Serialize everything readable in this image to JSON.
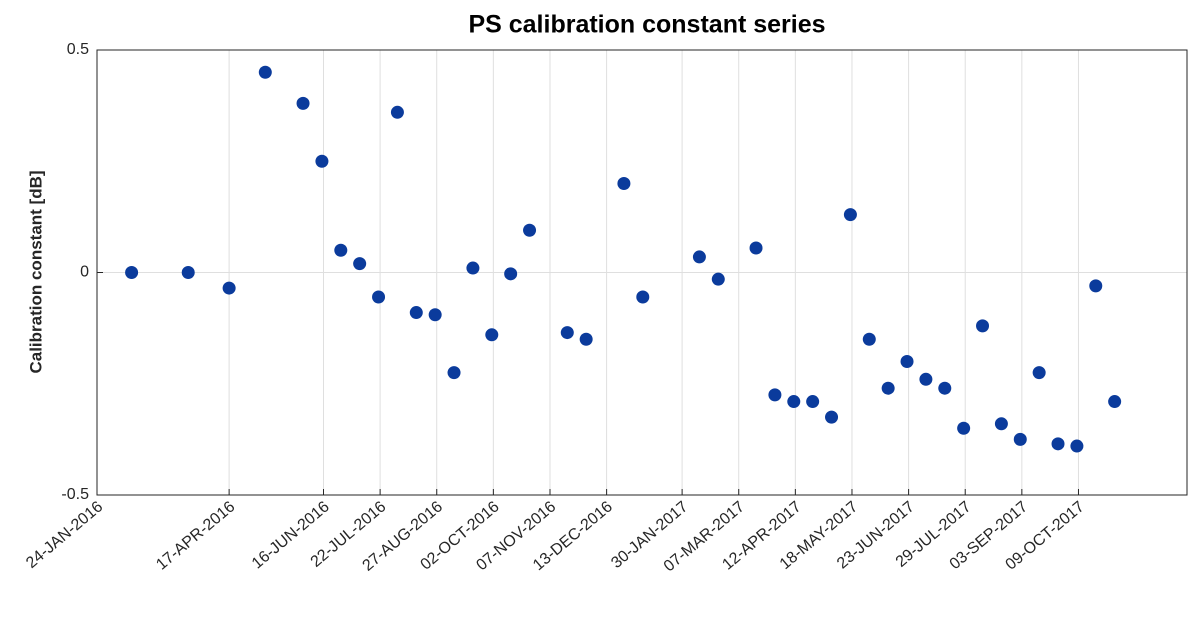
{
  "chart_data": {
    "type": "scatter",
    "title": "PS calibration constant series",
    "y_label": "Calibration constant [dB]",
    "color": "#0b3b9c",
    "grid": true,
    "x": [
      "2016-02-15",
      "2016-03-22",
      "2016-04-17",
      "2016-05-10",
      "2016-06-03",
      "2016-06-15",
      "2016-06-27",
      "2016-07-09",
      "2016-07-21",
      "2016-08-02",
      "2016-08-14",
      "2016-08-26",
      "2016-09-07",
      "2016-09-19",
      "2016-10-01",
      "2016-10-13",
      "2016-10-25",
      "2016-11-18",
      "2016-11-30",
      "2016-12-24",
      "2017-01-05",
      "2017-02-10",
      "2017-02-22",
      "2017-03-18",
      "2017-03-30",
      "2017-04-11",
      "2017-04-23",
      "2017-05-05",
      "2017-05-17",
      "2017-05-29",
      "2017-06-10",
      "2017-06-22",
      "2017-07-04",
      "2017-07-16",
      "2017-07-28",
      "2017-08-09",
      "2017-08-21",
      "2017-09-02",
      "2017-09-14",
      "2017-09-26",
      "2017-10-08",
      "2017-10-20",
      "2017-11-01"
    ],
    "values": [
      0,
      0,
      -0.035,
      0.45,
      0.38,
      0.25,
      0.05,
      0.02,
      -0.055,
      0.36,
      -0.09,
      -0.095,
      -0.225,
      0.01,
      -0.14,
      -0.003,
      0.095,
      -0.135,
      -0.15,
      0.2,
      -0.055,
      0.035,
      -0.015,
      0.055,
      -0.275,
      -0.29,
      -0.29,
      -0.325,
      0.13,
      -0.15,
      -0.26,
      -0.2,
      -0.24,
      -0.26,
      -0.35,
      -0.12,
      -0.34,
      -0.375,
      -0.225,
      -0.385,
      -0.39,
      -0.03,
      -0.29
    ],
    "xlim": [
      "2016-01-24",
      "2017-12-17"
    ],
    "xticks": [
      {
        "value": "2016-01-24",
        "label": "24-JAN-2016"
      },
      {
        "value": "2016-04-17",
        "label": "17-APR-2016"
      },
      {
        "value": "2016-06-16",
        "label": "16-JUN-2016"
      },
      {
        "value": "2016-07-22",
        "label": "22-JUL-2016"
      },
      {
        "value": "2016-08-27",
        "label": "27-AUG-2016"
      },
      {
        "value": "2016-10-02",
        "label": "02-OCT-2016"
      },
      {
        "value": "2016-11-07",
        "label": "07-NOV-2016"
      },
      {
        "value": "2016-12-13",
        "label": "13-DEC-2016"
      },
      {
        "value": "2017-01-30",
        "label": "30-JAN-2017"
      },
      {
        "value": "2017-03-07",
        "label": "07-MAR-2017"
      },
      {
        "value": "2017-04-12",
        "label": "12-APR-2017"
      },
      {
        "value": "2017-05-18",
        "label": "18-MAY-2017"
      },
      {
        "value": "2017-06-23",
        "label": "23-JUN-2017"
      },
      {
        "value": "2017-07-29",
        "label": "29-JUL-2017"
      },
      {
        "value": "2017-09-03",
        "label": "03-SEP-2017"
      },
      {
        "value": "2017-10-09",
        "label": "09-OCT-2017"
      }
    ],
    "ylim": [
      -0.5,
      0.5
    ],
    "yticks": [
      -0.5,
      0,
      0.5
    ]
  }
}
